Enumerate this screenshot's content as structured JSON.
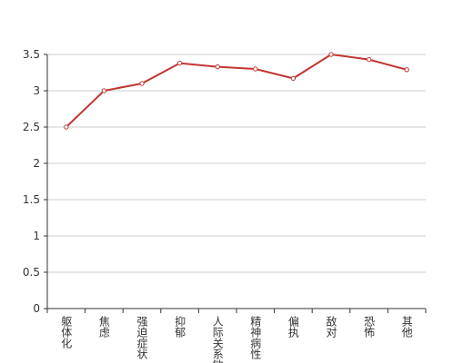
{
  "chart_data": {
    "type": "line",
    "categories": [
      "躯体化",
      "焦虑",
      "强迫症状",
      "抑郁",
      "人际关系敏感",
      "精神病性",
      "偏执",
      "敌对",
      "恐怖",
      "其他"
    ],
    "series": [
      {
        "color": "#c23531",
        "values": [
          2.5,
          3.0,
          3.1,
          3.38,
          3.33,
          3.3,
          3.17,
          3.5,
          3.43,
          3.29
        ]
      }
    ],
    "ylim": [
      0,
      3.5
    ],
    "yticks": [
      0,
      0.5,
      1,
      1.5,
      2,
      2.5,
      3,
      3.5
    ],
    "grid": true
  }
}
